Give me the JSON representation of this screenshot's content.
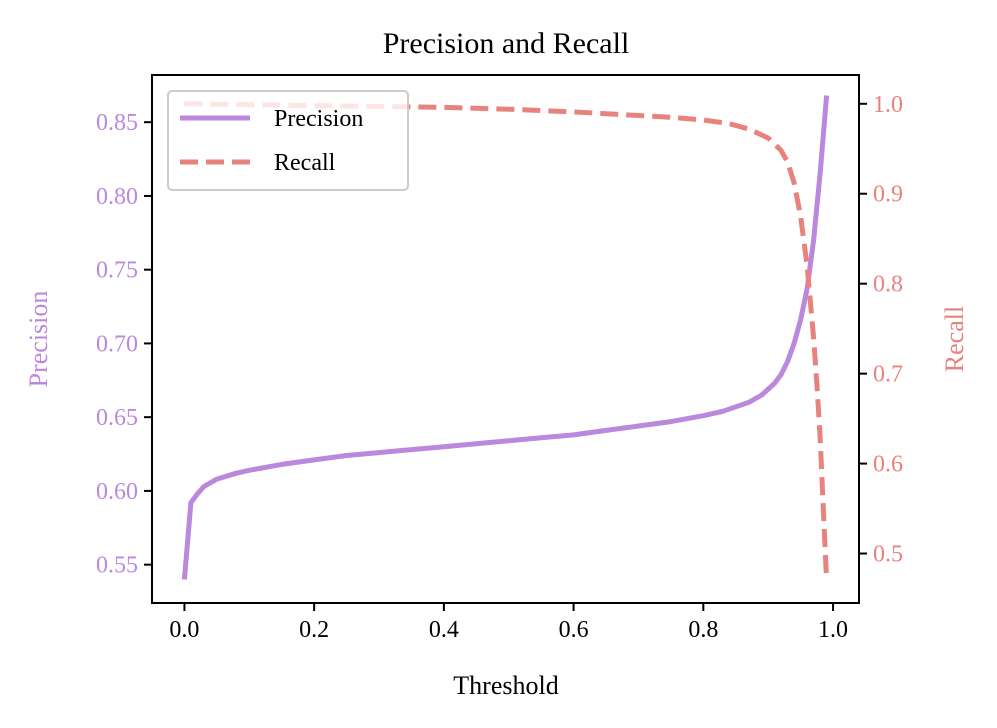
{
  "chart_data": {
    "type": "line",
    "title": "Precision and Recall",
    "xlabel": "Threshold",
    "ylabel_left": "Precision",
    "ylabel_right": "Recall",
    "xlim": [
      -0.05,
      1.04
    ],
    "ylim_left": [
      0.524,
      0.882
    ],
    "ylim_right": [
      0.445,
      1.032
    ],
    "x_ticks": [
      0.0,
      0.2,
      0.4,
      0.6,
      0.8,
      1.0
    ],
    "x_tick_labels": [
      "0.0",
      "0.2",
      "0.4",
      "0.6",
      "0.8",
      "1.0"
    ],
    "y_left_ticks": [
      0.55,
      0.6,
      0.65,
      0.7,
      0.75,
      0.8,
      0.85
    ],
    "y_left_tick_labels": [
      "0.55",
      "0.60",
      "0.65",
      "0.70",
      "0.75",
      "0.80",
      "0.85"
    ],
    "y_right_ticks": [
      0.5,
      0.6,
      0.7,
      0.8,
      0.9,
      1.0
    ],
    "y_right_tick_labels": [
      "0.5",
      "0.6",
      "0.7",
      "0.8",
      "0.9",
      "1.0"
    ],
    "legend_position": "upper-left",
    "grid": false,
    "series": [
      {
        "name": "Precision",
        "axis": "left",
        "style": "solid",
        "color": "#bb88dd",
        "x": [
          0.0,
          0.01,
          0.02,
          0.03,
          0.05,
          0.08,
          0.1,
          0.15,
          0.2,
          0.25,
          0.3,
          0.35,
          0.4,
          0.45,
          0.5,
          0.55,
          0.6,
          0.65,
          0.7,
          0.75,
          0.8,
          0.83,
          0.85,
          0.87,
          0.89,
          0.9,
          0.91,
          0.92,
          0.93,
          0.94,
          0.95,
          0.96,
          0.97,
          0.98,
          0.99
        ],
        "y": [
          0.54,
          0.592,
          0.598,
          0.603,
          0.608,
          0.612,
          0.614,
          0.618,
          0.621,
          0.624,
          0.626,
          0.628,
          0.63,
          0.632,
          0.634,
          0.636,
          0.638,
          0.641,
          0.644,
          0.647,
          0.651,
          0.654,
          0.657,
          0.66,
          0.665,
          0.669,
          0.673,
          0.679,
          0.688,
          0.7,
          0.716,
          0.737,
          0.77,
          0.815,
          0.868
        ]
      },
      {
        "name": "Recall",
        "axis": "right",
        "style": "dashed",
        "color": "#e8827c",
        "x": [
          0.0,
          0.1,
          0.2,
          0.3,
          0.4,
          0.5,
          0.6,
          0.65,
          0.7,
          0.75,
          0.8,
          0.84,
          0.87,
          0.9,
          0.92,
          0.93,
          0.94,
          0.95,
          0.96,
          0.97,
          0.975,
          0.98,
          0.985,
          0.99
        ],
        "y": [
          1.0,
          0.999,
          0.998,
          0.997,
          0.996,
          0.994,
          0.991,
          0.989,
          0.987,
          0.985,
          0.982,
          0.978,
          0.972,
          0.962,
          0.948,
          0.935,
          0.912,
          0.875,
          0.82,
          0.74,
          0.69,
          0.63,
          0.55,
          0.47
        ]
      }
    ]
  }
}
